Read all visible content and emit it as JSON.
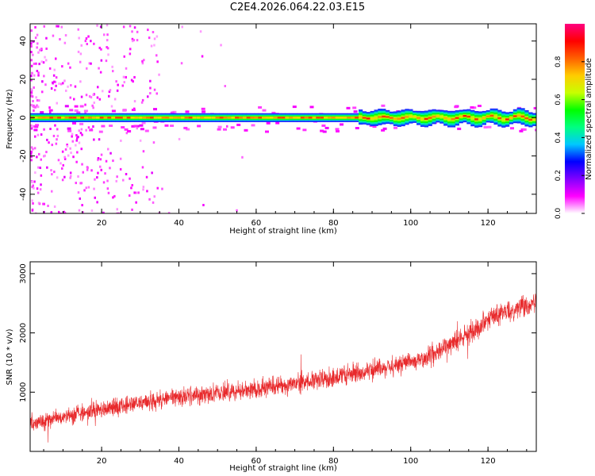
{
  "title": "C2E4.2026.064.22.03.E15",
  "colors": {
    "snr_line": "#e8292b",
    "colormap": [
      "#ffffff",
      "#ff00ff",
      "#8000ff",
      "#0000ff",
      "#00c8ff",
      "#00ff80",
      "#00ff00",
      "#c8ff00",
      "#ffcc00",
      "#ff6000",
      "#ff0000",
      "#ff0080"
    ]
  },
  "chart_data": [
    {
      "type": "heatmap",
      "title": "C2E4.2026.064.22.03.E15",
      "xlabel": "Height of straight line (km)",
      "ylabel": "Frequency (Hz)",
      "xlim": [
        1.5,
        132.5
      ],
      "ylim": [
        -50,
        49
      ],
      "xticks": [
        "20",
        "40",
        "60",
        "80",
        "100",
        "120"
      ],
      "yticks": [
        "40",
        "20",
        "0",
        "-20",
        "-40"
      ],
      "grid": false,
      "colorbar": {
        "label": "Normalized spectral amplitude",
        "range": [
          0.0,
          1.0
        ],
        "ticks": [
          "0.0",
          "0.2",
          "0.4",
          "0.6",
          "0.8"
        ]
      },
      "description_values": {
        "band_center_hz": 0,
        "band_halfwidth_hz": 2,
        "band_peak_amplitude": 0.85,
        "oscillation_start_km": 86,
        "oscillation_amplitude_hz": 2,
        "scatter_region_km": [
          1.5,
          35
        ],
        "scatter_amplitude": 0.08
      }
    },
    {
      "type": "line",
      "xlabel": "Height of straight line (km)",
      "ylabel": "SNR (10 * v/v)",
      "xlim": [
        1.5,
        132.5
      ],
      "ylim": [
        0,
        3200
      ],
      "xticks": [
        "20",
        "40",
        "60",
        "80",
        "100",
        "120"
      ],
      "yticks": [
        "3000",
        "2000",
        "1000"
      ],
      "grid": false,
      "trend": {
        "x": [
          2,
          10,
          20,
          30,
          40,
          50,
          60,
          70,
          80,
          90,
          100,
          105,
          110,
          115,
          120,
          125,
          130,
          132
        ],
        "y": [
          480,
          590,
          700,
          820,
          920,
          990,
          1060,
          1140,
          1240,
          1380,
          1500,
          1600,
          1800,
          1980,
          2250,
          2350,
          2480,
          2500
        ]
      },
      "noise_halfwidth": 230
    }
  ]
}
